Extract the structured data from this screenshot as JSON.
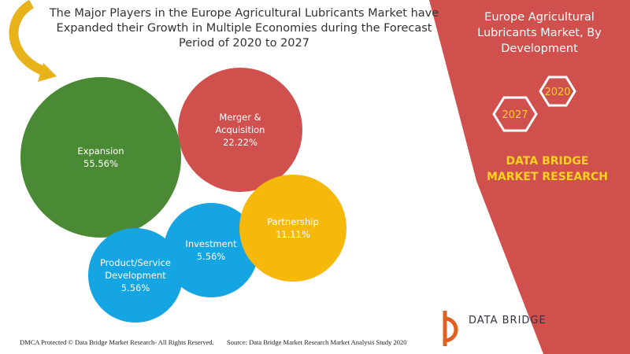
{
  "chart_data": {
    "type": "bubble",
    "title": "The Major Players in the Europe Agricultural Lubricants Market have Expanded their Growth in Multiple Economies during the Forecast Period of 2020 to 2027",
    "subtitle": "Europe Agricultural Lubricants Market, By Development",
    "categories": [
      "Expansion",
      "Merger & Acquisition",
      "Partnership",
      "Investment",
      "Product/Service Development"
    ],
    "values": [
      55.56,
      22.22,
      11.11,
      5.56,
      5.56
    ],
    "value_labels": [
      "55.56%",
      "22.22%",
      "11.11%",
      "5.56%",
      "5.56%"
    ],
    "colors": [
      "#4b8a35",
      "#d0504d",
      "#f7b80c",
      "#14a5e2",
      "#14a5e2"
    ]
  },
  "annotations": [
    "2020",
    "2027",
    "DATA BRIDGE MARKET RESEARCH"
  ],
  "logo": "DATA BRIDGE",
  "footer": "DMCA Protected © Data Bridge Market Research- All Rights Reserved.",
  "source": "Source: Data Bridge Market Research Market Analysis Study 2020"
}
